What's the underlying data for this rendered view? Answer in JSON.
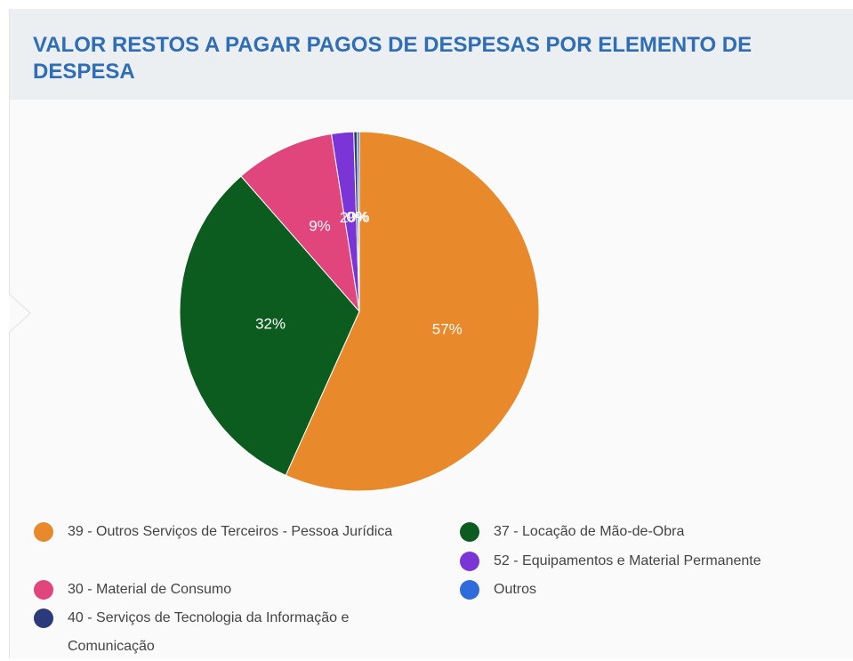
{
  "chart_data": {
    "type": "pie",
    "title": "VALOR RESTOS A PAGAR PAGOS DE DESPESAS POR ELEMENTO DE DESPESA",
    "categories": [
      "39 - Outros Serviços de Terceiros - Pessoa Jurídica",
      "37 - Locação de Mão-de-Obra",
      "30 - Material de Consumo",
      "52 - Equipamentos e Material Permanente",
      "40 - Serviços de Tecnologia da Informação e Comunicação",
      "Outros"
    ],
    "values": [
      57,
      32,
      9,
      2,
      0.3,
      0.2
    ],
    "value_labels": [
      "57%",
      "32%",
      "9%",
      "2%",
      "0%",
      "0%"
    ],
    "colors": [
      "#e8892b",
      "#0d5c1f",
      "#e0457b",
      "#7b35d6",
      "#2b3a7a",
      "#2f6bdb"
    ],
    "legend": "bottom"
  }
}
